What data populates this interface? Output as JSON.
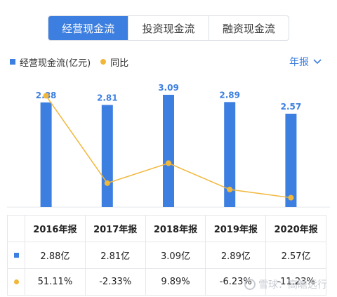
{
  "tabs": [
    "经营现金流",
    "投资现金流",
    "融资现金流"
  ],
  "active_tab": 0,
  "legend": {
    "bar_label": "经营现金流(亿元)",
    "line_label": "同比"
  },
  "period_label": "年报",
  "colors": {
    "bar": "#3d7fe0",
    "line": "#f1b73b",
    "positive": "#e23b3b",
    "negative": "#2aa15a"
  },
  "chart_data": {
    "type": "bar",
    "categories": [
      "2016年报",
      "2017年报",
      "2018年报",
      "2019年报",
      "2020年报"
    ],
    "series": [
      {
        "name": "经营现金流(亿元)",
        "type": "bar",
        "values": [
          2.88,
          2.81,
          3.09,
          2.89,
          2.57
        ],
        "labels": [
          "2.88",
          "2.81",
          "3.09",
          "2.89",
          "2.57"
        ]
      },
      {
        "name": "同比",
        "type": "line",
        "values": [
          51.11,
          -2.33,
          9.89,
          -6.23,
          -11.23
        ]
      }
    ],
    "bar_ylim": [
      0,
      3.09
    ],
    "line_ylim": [
      -17,
      56
    ]
  },
  "table": {
    "headers": [
      "2016年报",
      "2017年报",
      "2018年报",
      "2019年报",
      "2020年报"
    ],
    "values_row": [
      "2.88亿",
      "2.81亿",
      "3.09亿",
      "2.89亿",
      "2.57亿"
    ],
    "yoy_row": [
      "51.11%",
      "-2.33%",
      "9.89%",
      "-6.23%",
      "-11.23%"
    ]
  },
  "watermark": "雪球：高瞻远行"
}
